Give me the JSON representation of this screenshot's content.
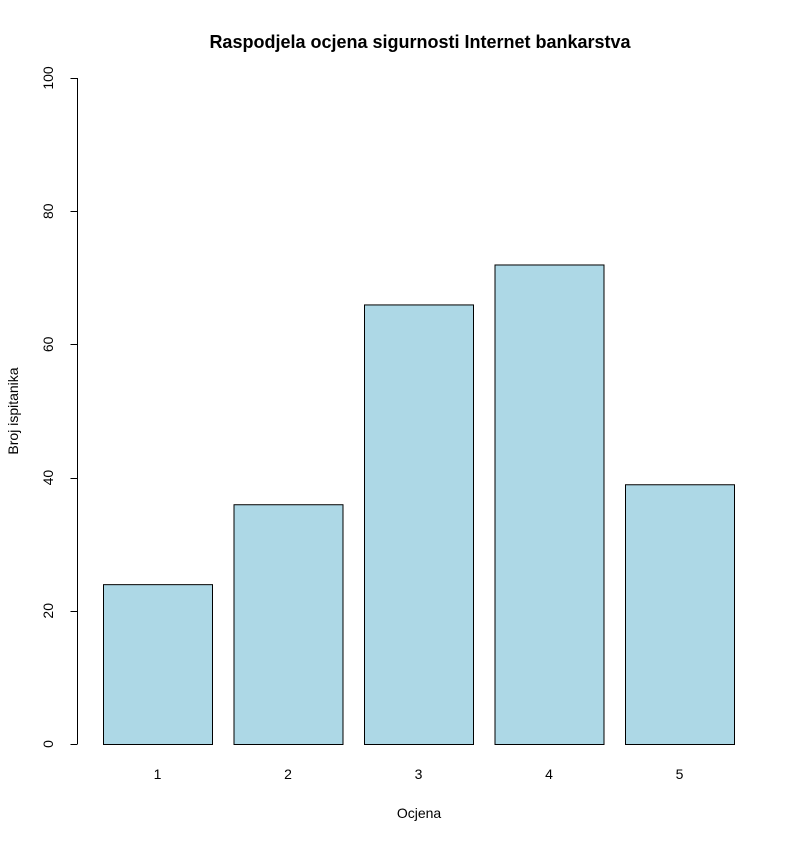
{
  "chart_data": {
    "type": "bar",
    "title": "Raspodjela ocjena sigurnosti Internet bankarstva",
    "xlabel": "Ocjena",
    "ylabel": "Broj ispitanika",
    "categories": [
      "1",
      "2",
      "3",
      "4",
      "5"
    ],
    "values": [
      24,
      36,
      66,
      72,
      39
    ],
    "ylim": [
      0,
      100
    ],
    "yticks": [
      "0",
      "20",
      "40",
      "60",
      "80",
      "100"
    ],
    "colors": {
      "bar_fill": "#add8e6",
      "bar_stroke": "#000000"
    },
    "grid": false,
    "legend": "none"
  }
}
